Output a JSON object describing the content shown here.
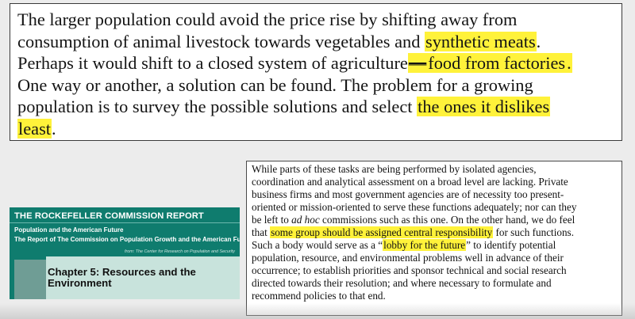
{
  "top_quote": {
    "l1": "The larger population could avoid the price rise by shifting away from",
    "l2a": "consumption of animal livestock towards vegetables and ",
    "l2_hl": "synthetic meats",
    "l2b": ".",
    "l3a": "Perhaps it would shift to a closed system of agriculture",
    "l3_dash": "—",
    "l3_hl": "food from factories",
    "l3b": ".",
    "l4": "One way or another, a solution can be found. The problem for a growing",
    "l5a": "population is to survey the possible solutions and select ",
    "l5_hl": "the ones it dislikes",
    "l6_hl": "least",
    "l6b": "."
  },
  "report_cover": {
    "title": "THE ROCKEFELLER COMMISSION REPORT",
    "subtitle1": "Population and the American Future",
    "subtitle2": "The Report of The Commission on Population Growth and the American Future",
    "from": "from: The Center for Research on Population and Security"
  },
  "chapter": {
    "line1": "Chapter 5: Resources and the",
    "line2": "Environment"
  },
  "commission_text": {
    "l1": "While parts of these tasks are being performed by isolated agencies,",
    "l2": "coordination and analytical assessment on a broad level are lacking. Private",
    "l3": "business firms and most government agencies are of necessity too present-",
    "l4": "oriented or mission-oriented to serve these functions adequately; nor can they",
    "l5a": "be left to ",
    "l5_em": "ad hoc",
    "l5b": " commissions such as this one. On the other hand, we do feel",
    "l6a": "that ",
    "l6_hl": "some group should be assigned central responsibility",
    "l6b": " for such functions.",
    "l7a": "Such a body would serve as a “",
    "l7_hl": "lobby for the future",
    "l7b": "” to identify potential",
    "l8": "population, resource, and environmental problems well in advance of their",
    "l9": "occurrence; to establish priorities and sponsor technical and social research",
    "l10": "directed towards their resolution; and where necessary to formulate and",
    "l11": "recommend policies to that end."
  },
  "colors": {
    "highlight": "#fff23a",
    "cover_green": "#0f7c6e"
  }
}
